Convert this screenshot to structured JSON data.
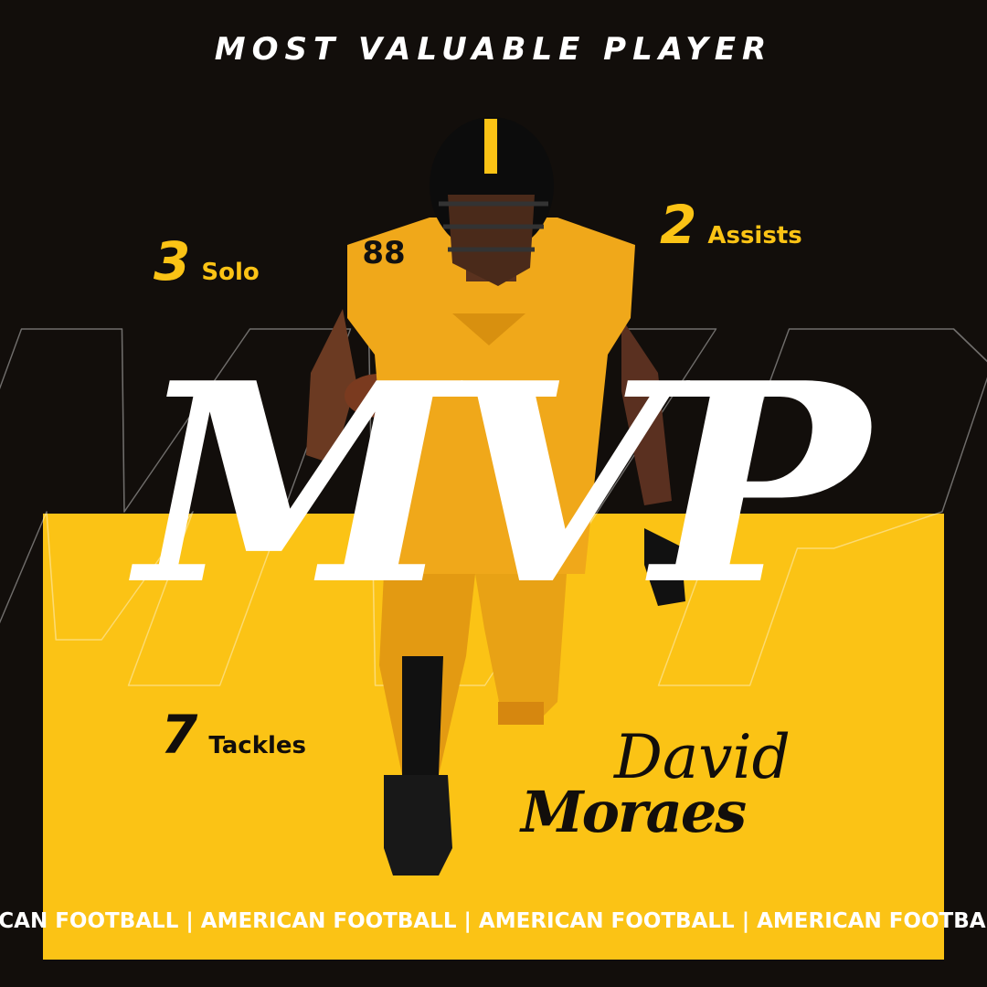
{
  "header": {
    "title": "MOST VALUABLE PLAYER"
  },
  "watermark": "MVP",
  "headline": "MVP",
  "stats": [
    {
      "value": "3",
      "label": "Solo"
    },
    {
      "value": "2",
      "label": "Assists"
    },
    {
      "value": "7",
      "label": "Tackles"
    }
  ],
  "player": {
    "first_name": "David",
    "last_name": "Moraes",
    "jersey_number": "88"
  },
  "ticker": "RICAN FOOTBALL | AMERICAN FOOTBALL | AMERICAN FOOTBALL | AMERICAN FOOTBALL",
  "colors": {
    "background": "#120e0b",
    "accent": "#fbc315",
    "text": "#ffffff"
  }
}
